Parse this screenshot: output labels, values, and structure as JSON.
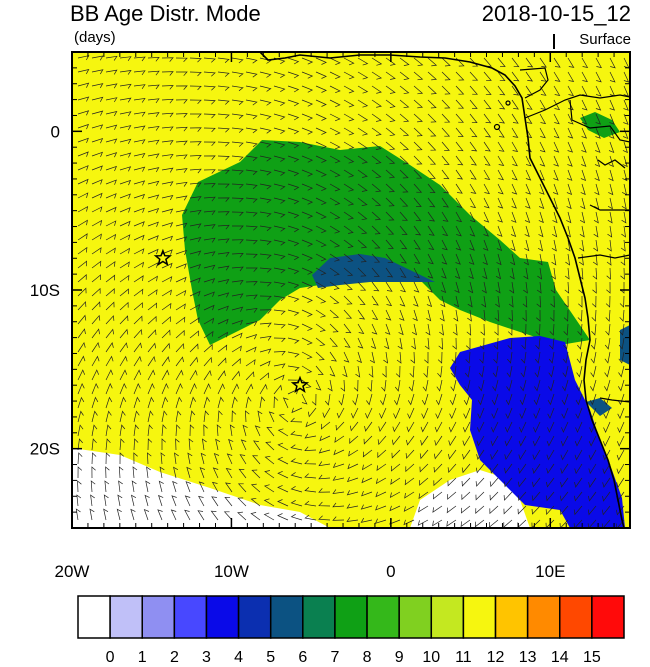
{
  "header": {
    "title_left": "BB Age Distr. Mode",
    "title_right": "2018-10-15_12",
    "units": "(days)",
    "level": "Surface"
  },
  "map": {
    "lon_range": [
      -20,
      15
    ],
    "lat_range": [
      -25,
      5
    ],
    "x_ticks": [
      {
        "value": -20,
        "label": "20W"
      },
      {
        "value": -10,
        "label": "10W"
      },
      {
        "value": 0,
        "label": "0"
      },
      {
        "value": 10,
        "label": "10E"
      }
    ],
    "y_ticks": [
      {
        "value": 0,
        "label": "0"
      },
      {
        "value": -10,
        "label": "10S"
      },
      {
        "value": -20,
        "label": "20S"
      }
    ],
    "star_markers": [
      {
        "lon": -14.3,
        "lat": -8.0
      },
      {
        "lon": -5.7,
        "lat": -16.0
      }
    ],
    "overlay": "wind barbs",
    "colors": {
      "age_0": "#ffffff",
      "age_1": "#c0c0f8",
      "age_2": "#8f8ff2",
      "age_3": "#4848ff",
      "age_4": "#0a0ae8",
      "age_5": "#0b2fb0",
      "age_6": "#0c5282",
      "age_7": "#0a8050",
      "age_8": "#0fa015",
      "age_9": "#34b81a",
      "age_10": "#80d020",
      "age_11": "#c4e820",
      "age_12": "#f6f60f",
      "age_13": "#ffc400",
      "age_14": "#ff8a00",
      "age_15": "#ff4800",
      "age_16": "#ff0a0a"
    }
  },
  "colorbar": {
    "labels": [
      "0",
      "1",
      "2",
      "3",
      "4",
      "5",
      "6",
      "7",
      "8",
      "9",
      "10",
      "11",
      "12",
      "13",
      "14",
      "15"
    ],
    "colors": [
      "#ffffff",
      "#c0c0f8",
      "#8f8ff2",
      "#4848ff",
      "#0a0ae8",
      "#0b2fb0",
      "#0c5282",
      "#0a8050",
      "#0fa015",
      "#34b81a",
      "#80d020",
      "#c4e820",
      "#f6f60f",
      "#ffc400",
      "#ff8a00",
      "#ff4800",
      "#ff0a0a"
    ]
  }
}
